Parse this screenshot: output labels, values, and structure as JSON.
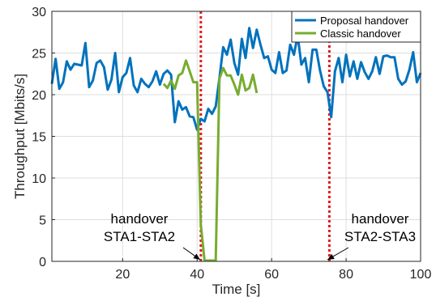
{
  "chart_data": {
    "type": "line",
    "xlabel": "Time [s]",
    "ylabel": "Throughput [Mbits/s]",
    "xlim": [
      1,
      100
    ],
    "ylim": [
      0,
      30
    ],
    "xticks": [
      20,
      40,
      60,
      80,
      100
    ],
    "yticks": [
      0,
      5,
      10,
      15,
      20,
      25,
      30
    ],
    "grid": true,
    "legend_position": "top-right",
    "series": [
      {
        "name": "Proposal handover",
        "color": "#0072BD",
        "x": [
          1,
          2,
          3,
          4,
          5,
          6,
          7,
          8,
          9,
          10,
          11,
          12,
          13,
          14,
          15,
          16,
          17,
          18,
          19,
          20,
          21,
          22,
          23,
          24,
          25,
          26,
          27,
          28,
          29,
          30,
          31,
          32,
          33,
          34,
          35,
          36,
          37,
          38,
          39,
          40,
          41,
          42,
          43,
          44,
          45,
          46,
          47,
          48,
          49,
          50,
          51,
          52,
          53,
          54,
          55,
          56,
          57,
          58,
          59,
          60,
          61,
          62,
          63,
          64,
          65,
          66,
          67,
          68,
          69,
          70,
          71,
          72,
          73,
          74,
          75,
          76,
          77,
          78,
          79,
          80,
          81,
          82,
          83,
          84,
          85,
          86,
          87,
          88,
          89,
          90,
          91,
          92,
          93,
          94,
          95,
          96,
          97,
          98,
          99,
          100
        ],
        "values": [
          21.3,
          24.3,
          20.7,
          21.5,
          24.0,
          23.0,
          23.7,
          23.6,
          23.5,
          26.2,
          20.9,
          21.7,
          23.8,
          24.1,
          23.3,
          20.6,
          21.8,
          25.0,
          20.3,
          22.1,
          22.6,
          24.4,
          21.1,
          20.3,
          21.9,
          21.3,
          20.9,
          21.6,
          22.8,
          21.2,
          22.5,
          22.9,
          22.4,
          16.7,
          19.2,
          18.2,
          18.5,
          17.4,
          17.3,
          15.8,
          17.1,
          16.8,
          18.3,
          17.7,
          18.6,
          22.0,
          25.7,
          24.8,
          26.6,
          23.8,
          22.4,
          26.7,
          24.4,
          28.0,
          25.6,
          27.8,
          26.0,
          24.4,
          24.6,
          23.0,
          22.6,
          25.1,
          22.6,
          22.9,
          26.0,
          24.8,
          27.1,
          23.6,
          24.4,
          21.5,
          25.4,
          25.4,
          22.9,
          21.0,
          20.3,
          17.3,
          22.8,
          24.4,
          21.5,
          24.8,
          22.2,
          24.0,
          21.9,
          23.9,
          22.7,
          21.9,
          22.8,
          24.5,
          22.5,
          24.6,
          24.7,
          24.5,
          24.5,
          21.9,
          21.2,
          21.6,
          23.0,
          25.1,
          21.5,
          22.6
        ]
      },
      {
        "name": "Classic handover",
        "color": "#77AC30",
        "x": [
          31,
          32,
          33,
          34,
          35,
          36,
          37,
          38,
          39,
          40,
          41,
          42,
          43,
          44,
          45,
          46,
          47,
          48,
          49,
          50,
          51,
          52,
          53,
          54,
          55,
          56
        ],
        "values": [
          21.3,
          20.8,
          21.7,
          20.7,
          22.3,
          22.6,
          24.1,
          22.8,
          21.5,
          21.5,
          4.4,
          0.1,
          0.1,
          0.1,
          0.1,
          21.9,
          23.2,
          22.3,
          22.3,
          21.2,
          20.0,
          22.4,
          20.5,
          20.8,
          22.4,
          20.2
        ]
      }
    ],
    "vertical_lines": [
      {
        "x": 41,
        "color": "#e41a1c",
        "style": "dotted"
      },
      {
        "x": 75.5,
        "color": "#e41a1c",
        "style": "dotted"
      }
    ],
    "annotations": [
      {
        "lines": [
          "handover",
          "STA1-STA2"
        ],
        "point_x": 40.8,
        "point_y": 0.2
      },
      {
        "lines": [
          "handover",
          "STA2-STA3"
        ],
        "point_x": 75.0,
        "point_y": 0.2
      }
    ]
  }
}
